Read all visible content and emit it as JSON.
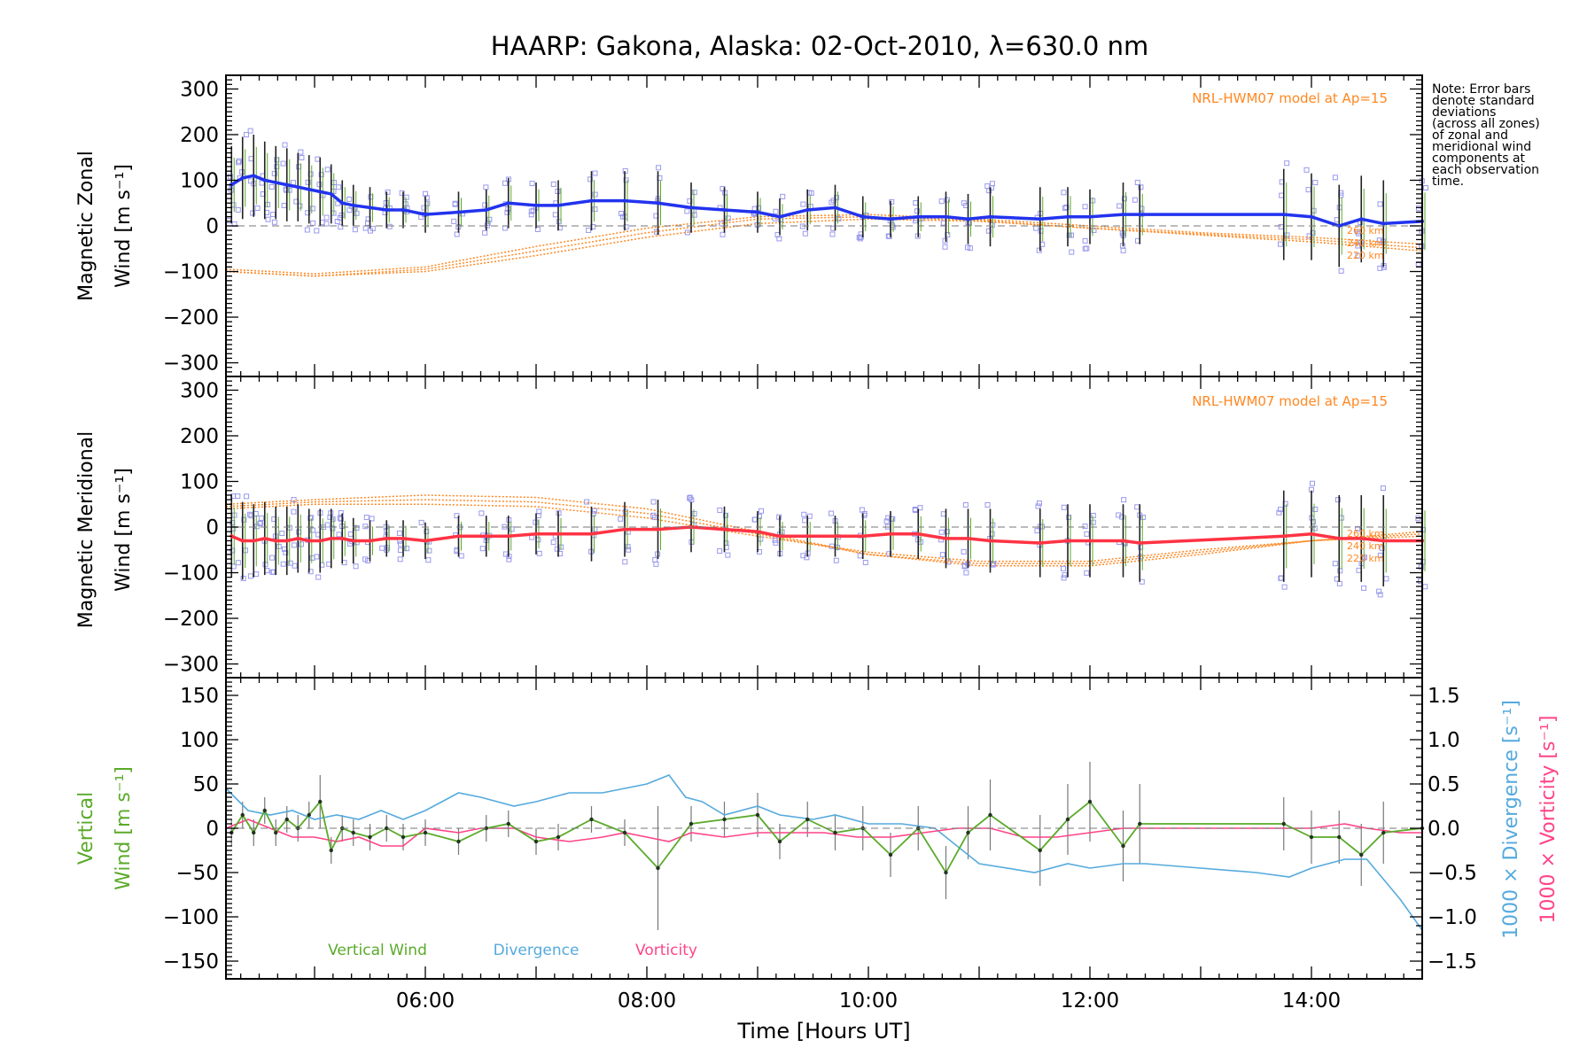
{
  "title": "HAARP: Gakona,  Alaska: 02-Oct-2010, λ=630.0 nm",
  "note": [
    "Note: Error bars",
    "denote standard",
    "deviations",
    "(across all zones)",
    "of zonal and",
    "meridional wind",
    "components at",
    "each observation",
    "time."
  ],
  "xlabel": "Time [Hours UT]",
  "colors": {
    "zonal": "#2233ee",
    "meridional": "#ff3344",
    "vertical": "#5aaa2a",
    "divergence": "#55aadd",
    "vorticity": "#ff4488",
    "model": "#ff8822",
    "samples": "#9999ee",
    "errorbar": "#222222"
  },
  "chart_data": [
    {
      "type": "line",
      "name": "zonal",
      "ylabel": [
        "Magnetic Zonal",
        "Wind [m s⁻¹]"
      ],
      "model_label": "NRL-HWM07 model at Ap=15",
      "model_altitudes": [
        "260 km",
        "240 km",
        "220 km"
      ],
      "ylim": [
        -330,
        330
      ],
      "yticks": [
        300,
        200,
        100,
        0,
        -100,
        -200,
        -300
      ],
      "xlim": [
        4.2,
        15.0
      ],
      "x": [
        4.25,
        4.35,
        4.45,
        4.55,
        4.65,
        4.75,
        4.85,
        4.95,
        5.05,
        5.15,
        5.25,
        5.35,
        5.5,
        5.65,
        5.8,
        6.0,
        6.3,
        6.55,
        6.75,
        7.0,
        7.2,
        7.5,
        7.8,
        8.1,
        8.4,
        8.7,
        9.0,
        9.2,
        9.45,
        9.7,
        9.95,
        10.2,
        10.45,
        10.7,
        10.9,
        11.1,
        11.55,
        11.8,
        12.0,
        12.3,
        12.45,
        13.75,
        14.0,
        14.25,
        14.45,
        14.65,
        15.0
      ],
      "y": [
        90,
        105,
        110,
        100,
        95,
        90,
        85,
        80,
        75,
        70,
        50,
        45,
        40,
        35,
        35,
        25,
        30,
        35,
        50,
        45,
        45,
        55,
        55,
        50,
        40,
        35,
        30,
        20,
        35,
        40,
        20,
        15,
        20,
        20,
        15,
        20,
        15,
        20,
        20,
        25,
        25,
        25,
        20,
        0,
        15,
        5,
        10
      ],
      "errors": [
        85,
        90,
        90,
        85,
        80,
        80,
        75,
        75,
        75,
        65,
        50,
        45,
        45,
        40,
        40,
        40,
        45,
        45,
        55,
        50,
        55,
        65,
        65,
        70,
        55,
        50,
        45,
        40,
        45,
        50,
        45,
        40,
        45,
        55,
        55,
        65,
        70,
        65,
        60,
        70,
        65,
        100,
        95,
        90,
        95,
        95,
        90
      ],
      "model_curves": [
        {
          "label": "260 km",
          "x": [
            4.2,
            5.0,
            6.0,
            7.0,
            8.0,
            9.0,
            10.0,
            11.0,
            12.0,
            13.0,
            14.0,
            15.0
          ],
          "y": [
            -100,
            -110,
            -100,
            -65,
            -25,
            5,
            15,
            10,
            -5,
            -20,
            -35,
            -55
          ]
        },
        {
          "label": "240 km",
          "x": [
            4.2,
            5.0,
            6.0,
            7.0,
            8.0,
            9.0,
            10.0,
            11.0,
            12.0,
            13.0,
            14.0,
            15.0
          ],
          "y": [
            -100,
            -110,
            -95,
            -55,
            -15,
            15,
            20,
            12,
            -5,
            -18,
            -30,
            -48
          ]
        },
        {
          "label": "220 km",
          "x": [
            4.2,
            5.0,
            6.0,
            7.0,
            8.0,
            9.0,
            10.0,
            11.0,
            12.0,
            13.0,
            14.0,
            15.0
          ],
          "y": [
            -95,
            -105,
            -90,
            -45,
            -5,
            20,
            25,
            15,
            0,
            -15,
            -25,
            -40
          ]
        }
      ]
    },
    {
      "type": "line",
      "name": "meridional",
      "ylabel": [
        "Magnetic Meridional",
        "Wind [m s⁻¹]"
      ],
      "model_label": "NRL-HWM07 model at Ap=15",
      "model_altitudes": [
        "260 km",
        "240 km",
        "220 km"
      ],
      "ylim": [
        -330,
        330
      ],
      "yticks": [
        300,
        200,
        100,
        0,
        -100,
        -200,
        -300
      ],
      "xlim": [
        4.2,
        15.0
      ],
      "x": [
        4.25,
        4.35,
        4.45,
        4.55,
        4.65,
        4.75,
        4.85,
        4.95,
        5.05,
        5.15,
        5.25,
        5.35,
        5.5,
        5.65,
        5.8,
        6.0,
        6.3,
        6.55,
        6.75,
        7.0,
        7.2,
        7.5,
        7.8,
        8.1,
        8.4,
        8.7,
        9.0,
        9.2,
        9.45,
        9.7,
        9.95,
        10.2,
        10.45,
        10.7,
        10.9,
        11.1,
        11.55,
        11.8,
        12.0,
        12.3,
        12.45,
        13.75,
        14.0,
        14.25,
        14.45,
        14.65,
        15.0
      ],
      "y": [
        -20,
        -30,
        -30,
        -25,
        -30,
        -30,
        -25,
        -30,
        -30,
        -25,
        -25,
        -30,
        -30,
        -25,
        -25,
        -30,
        -20,
        -20,
        -20,
        -15,
        -15,
        -15,
        -5,
        -5,
        0,
        -5,
        -10,
        -20,
        -20,
        -20,
        -20,
        -15,
        -15,
        -25,
        -25,
        -30,
        -35,
        -30,
        -30,
        -30,
        -35,
        -20,
        -15,
        -25,
        -25,
        -30,
        -30
      ],
      "errors": [
        90,
        85,
        80,
        80,
        75,
        75,
        75,
        70,
        70,
        65,
        55,
        50,
        45,
        40,
        40,
        40,
        45,
        45,
        45,
        45,
        50,
        60,
        60,
        65,
        55,
        50,
        45,
        45,
        45,
        45,
        50,
        50,
        55,
        65,
        65,
        70,
        75,
        80,
        80,
        80,
        85,
        100,
        95,
        95,
        95,
        100,
        95
      ],
      "model_curves": [
        {
          "label": "260 km",
          "x": [
            4.2,
            5.0,
            6.0,
            7.0,
            8.0,
            9.0,
            10.0,
            11.0,
            12.0,
            13.0,
            14.0,
            15.0
          ],
          "y": [
            50,
            60,
            70,
            65,
            40,
            -10,
            -60,
            -85,
            -85,
            -60,
            -30,
            -10
          ]
        },
        {
          "label": "240 km",
          "x": [
            4.2,
            5.0,
            6.0,
            7.0,
            8.0,
            9.0,
            10.0,
            11.0,
            12.0,
            13.0,
            14.0,
            15.0
          ],
          "y": [
            45,
            55,
            60,
            55,
            30,
            -15,
            -60,
            -80,
            -80,
            -55,
            -30,
            -15
          ]
        },
        {
          "label": "220 km",
          "x": [
            4.2,
            5.0,
            6.0,
            7.0,
            8.0,
            9.0,
            10.0,
            11.0,
            12.0,
            13.0,
            14.0,
            15.0
          ],
          "y": [
            40,
            50,
            50,
            45,
            20,
            -20,
            -55,
            -75,
            -75,
            -50,
            -30,
            -20
          ]
        }
      ]
    },
    {
      "type": "line",
      "name": "vertical",
      "ylabel": [
        "Vertical",
        "Wind [m s⁻¹]"
      ],
      "y2label": [
        "1000 × Divergence [s⁻¹]",
        "1000 × Vorticity [s⁻¹]"
      ],
      "ylim": [
        -170,
        170
      ],
      "yticks": [
        150,
        100,
        50,
        0,
        -50,
        -100,
        -150
      ],
      "y2lim": [
        -1.7,
        1.7
      ],
      "y2ticks": [
        "1.5",
        "1.0",
        "0.5",
        "0.0",
        "−0.5",
        "−1.0",
        "−1.5"
      ],
      "xlim": [
        4.2,
        15.0
      ],
      "xticks": [
        "06:00",
        "08:00",
        "10:00",
        "12:00",
        "14:00"
      ],
      "legend": [
        "Vertical Wind",
        "Divergence",
        "Vorticity"
      ],
      "series": [
        {
          "name": "Vertical Wind",
          "x": [
            4.25,
            4.35,
            4.45,
            4.55,
            4.65,
            4.75,
            4.85,
            4.95,
            5.05,
            5.15,
            5.25,
            5.35,
            5.5,
            5.65,
            5.8,
            6.0,
            6.3,
            6.55,
            6.75,
            7.0,
            7.2,
            7.5,
            7.8,
            8.1,
            8.4,
            8.7,
            9.0,
            9.2,
            9.45,
            9.7,
            9.95,
            10.2,
            10.45,
            10.7,
            10.9,
            11.1,
            11.55,
            11.8,
            12.0,
            12.3,
            12.45,
            13.75,
            14.0,
            14.25,
            14.45,
            14.65,
            15.0
          ],
          "y": [
            -5,
            15,
            -5,
            20,
            -5,
            10,
            0,
            15,
            30,
            -25,
            0,
            -5,
            -10,
            0,
            -10,
            -5,
            -15,
            0,
            5,
            -15,
            -10,
            10,
            -5,
            -45,
            5,
            10,
            15,
            -15,
            10,
            -5,
            0,
            -30,
            0,
            -50,
            -5,
            15,
            -25,
            10,
            30,
            -20,
            5,
            5,
            -10,
            -10,
            -30,
            -5,
            0
          ],
          "errors": [
            15,
            15,
            15,
            15,
            15,
            15,
            15,
            15,
            30,
            15,
            15,
            15,
            15,
            15,
            15,
            15,
            15,
            15,
            15,
            15,
            15,
            15,
            15,
            70,
            20,
            20,
            25,
            20,
            20,
            20,
            25,
            25,
            25,
            30,
            30,
            40,
            40,
            40,
            45,
            40,
            45,
            30,
            30,
            30,
            35,
            35,
            30
          ]
        },
        {
          "name": "Divergence",
          "x": [
            4.2,
            4.4,
            4.6,
            4.8,
            5.0,
            5.2,
            5.4,
            5.6,
            5.8,
            6.0,
            6.3,
            6.5,
            6.8,
            7.0,
            7.3,
            7.6,
            7.8,
            8.0,
            8.2,
            8.35,
            8.5,
            8.7,
            9.0,
            9.2,
            9.5,
            9.7,
            10.0,
            10.3,
            10.6,
            11.0,
            11.5,
            11.8,
            12.0,
            12.3,
            12.5,
            13.0,
            13.5,
            13.8,
            14.0,
            14.3,
            14.5,
            14.8,
            15.0
          ],
          "y": [
            0.45,
            0.2,
            0.15,
            0.2,
            0.1,
            0.15,
            0.1,
            0.2,
            0.1,
            0.2,
            0.4,
            0.35,
            0.25,
            0.3,
            0.4,
            0.4,
            0.45,
            0.5,
            0.6,
            0.35,
            0.3,
            0.15,
            0.25,
            0.15,
            0.1,
            0.15,
            0.05,
            0.05,
            0.0,
            -0.4,
            -0.5,
            -0.4,
            -0.45,
            -0.4,
            -0.4,
            -0.45,
            -0.5,
            -0.55,
            -0.45,
            -0.35,
            -0.35,
            -0.8,
            -1.15
          ]
        },
        {
          "name": "Vorticity",
          "x": [
            4.2,
            4.4,
            4.6,
            4.8,
            5.0,
            5.2,
            5.4,
            5.6,
            5.8,
            6.0,
            6.3,
            6.5,
            6.8,
            7.0,
            7.3,
            7.6,
            7.8,
            8.0,
            8.2,
            8.4,
            8.7,
            9.0,
            9.3,
            9.6,
            9.9,
            10.2,
            10.5,
            10.8,
            11.1,
            11.4,
            11.7,
            12.0,
            12.3,
            12.6,
            13.0,
            13.4,
            13.8,
            14.0,
            14.3,
            14.5,
            14.8,
            15.0
          ],
          "y": [
            0.0,
            0.1,
            0.0,
            -0.1,
            -0.1,
            -0.15,
            -0.1,
            -0.2,
            -0.2,
            0.0,
            -0.05,
            0.0,
            0.0,
            -0.1,
            -0.15,
            -0.1,
            -0.05,
            -0.1,
            -0.15,
            -0.05,
            -0.1,
            -0.05,
            -0.05,
            -0.05,
            -0.1,
            -0.1,
            -0.05,
            0.0,
            0.0,
            -0.1,
            -0.1,
            -0.05,
            0.0,
            0.0,
            0.0,
            0.0,
            0.0,
            0.0,
            0.05,
            0.0,
            -0.05,
            -0.05
          ]
        }
      ]
    }
  ]
}
